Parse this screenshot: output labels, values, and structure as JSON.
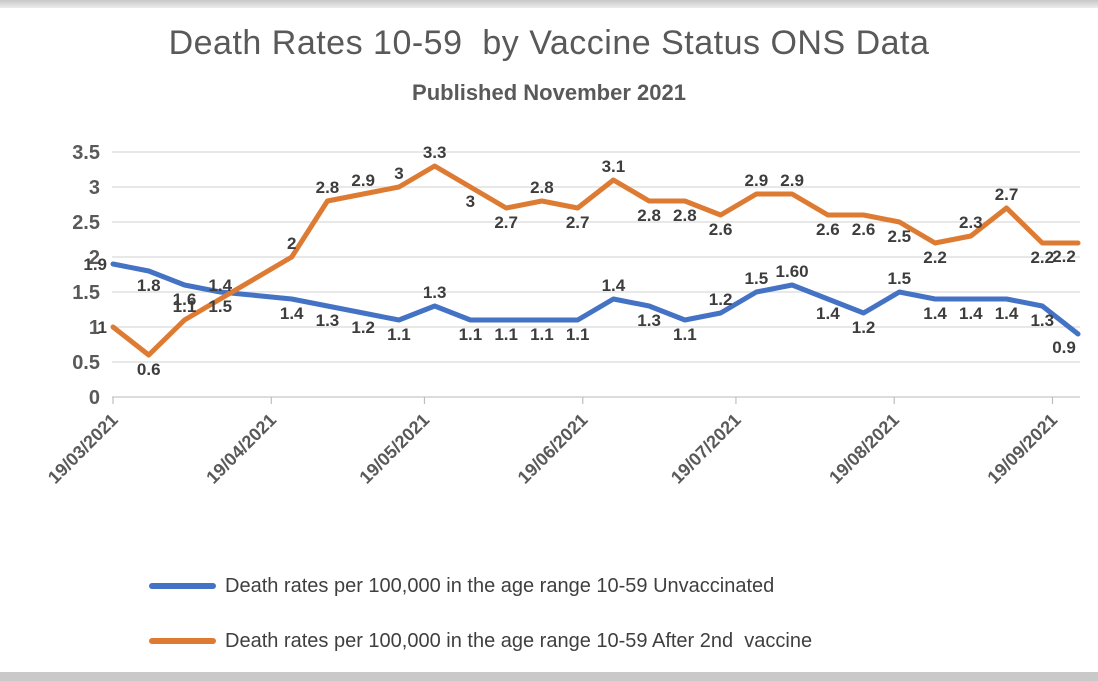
{
  "frame": {
    "background": "#ffffff",
    "top_strip_color": "#c7c7c7",
    "bottom_strip_color": "#c9c9c9"
  },
  "chart_data": {
    "type": "line",
    "title": "Death Rates 10-59  by Vaccine Status ONS Data",
    "subtitle": "Published November 2021",
    "x_axis": {
      "tick_labels": [
        "19/03/2021",
        "19/04/2021",
        "19/05/2021",
        "19/06/2021",
        "19/07/2021",
        "19/08/2021",
        "19/09/2021"
      ],
      "frequency": "weekly points, monthly ticks",
      "label_rotation_deg": -45
    },
    "y_axis": {
      "ticks": [
        0,
        0.5,
        1,
        1.5,
        2,
        2.5,
        3,
        3.5
      ],
      "min": 0,
      "max": 3.5
    },
    "grid": "horizontal",
    "legend_position": "bottom-left",
    "colors": {
      "unvaccinated_line": "#4472C4",
      "after_2nd_vaccine_line": "#DE7B33",
      "axis_text": "#595959",
      "data_label_text": "#3D3D3D",
      "gridline": "#D9D9D9"
    },
    "series": [
      {
        "id": "unvaccinated",
        "name": "Death rates per 100,000 in the age range 10-59 Unvaccinated",
        "color": "#4472C4",
        "values": [
          1.9,
          1.8,
          1.6,
          1.5,
          1.45,
          1.4,
          1.3,
          1.2,
          1.1,
          1.3,
          1.1,
          1.1,
          1.1,
          1.1,
          1.4,
          1.3,
          1.1,
          1.2,
          1.5,
          1.6,
          1.4,
          1.2,
          1.5,
          1.4,
          1.4,
          1.4,
          1.3,
          0.9
        ],
        "labels": [
          "1.9",
          "1.8",
          "1.6",
          "1.5",
          "",
          "1.4",
          "1.3",
          "1.2",
          "1.1",
          "1.3",
          "1.1",
          "1.1",
          "1.1",
          "1.1",
          "1.4",
          "1.3",
          "1.1",
          "1.2",
          "1.5",
          "1.60",
          "1.4",
          "1.2",
          "1.5",
          "1.4",
          "1.4",
          "1.4",
          "1.3",
          "0.9"
        ]
      },
      {
        "id": "after-2nd-vaccine",
        "name": "Death rates per 100,000 in the age range 10-59 After 2nd  vaccine",
        "color": "#DE7B33",
        "values": [
          1,
          0.6,
          1.1,
          1.4,
          1.7,
          2,
          2.8,
          2.9,
          3,
          3.3,
          3,
          2.7,
          2.8,
          2.7,
          3.1,
          2.8,
          2.8,
          2.6,
          2.9,
          2.9,
          2.6,
          2.6,
          2.5,
          2.2,
          2.3,
          2.7,
          2.2,
          2.2
        ],
        "labels": [
          "1",
          "0.6",
          "1.1",
          "1.4",
          "",
          "2",
          "2.8",
          "2.9",
          "3",
          "3.3",
          "3",
          "2.7",
          "2.8",
          "2.7",
          "3.1",
          "2.8",
          "2.8",
          "2.6",
          "2.9",
          "2.9",
          "2.6",
          "2.6",
          "2.5",
          "2.2",
          "2.3",
          "2.7",
          "2.2",
          "2.2"
        ]
      }
    ]
  }
}
